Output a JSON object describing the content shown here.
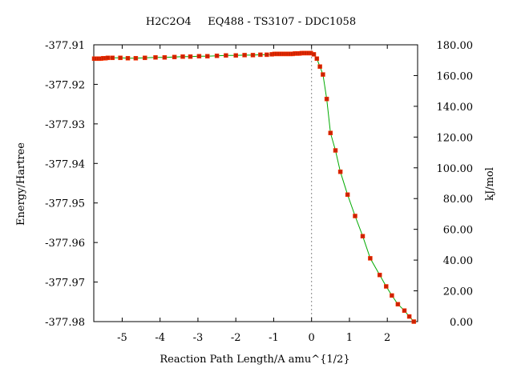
{
  "chart_data": {
    "type": "line",
    "title": "H2C2O4     EQ488 - TS3107 - DDC1058",
    "xlabel": "Reaction Path Length/A amu^{1/2}",
    "ylabel": "Energy/Hartree",
    "y2label": "kJ/mol",
    "xlim": [
      -5.75,
      2.8
    ],
    "ylim": [
      -377.98,
      -377.91
    ],
    "y2lim": [
      0,
      180
    ],
    "x_ticks": [
      -5,
      -4,
      -3,
      -2,
      -1,
      0,
      1,
      2
    ],
    "y_ticks": [
      -377.98,
      -377.97,
      -377.96,
      -377.95,
      -377.94,
      -377.93,
      -377.92,
      -377.91
    ],
    "y2_ticks": [
      0,
      20,
      40,
      60,
      80,
      100,
      120,
      140,
      160,
      180
    ],
    "x_tick_labels": [
      "-5",
      "-4",
      "-3",
      "-2",
      "-1",
      "0",
      "1",
      "2"
    ],
    "y_tick_labels": [
      "-377.98",
      "-377.97",
      "-377.96",
      "-377.95",
      "-377.94",
      "-377.93",
      "-377.92",
      "-377.91"
    ],
    "y2_tick_labels": [
      "0.00",
      "20.00",
      "40.00",
      "60.00",
      "80.00",
      "100.00",
      "120.00",
      "140.00",
      "160.00",
      "180.00"
    ],
    "ts_marker_x": 0,
    "line_color": "#00aa00",
    "marker_color": "#cc2200",
    "series": [
      {
        "x": [
          -5.74,
          -5.68,
          -5.62,
          -5.56,
          -5.5,
          -5.44,
          -5.38,
          -5.26,
          -5.05,
          -4.85,
          -4.64,
          -4.4,
          -4.12,
          -3.88,
          -3.62,
          -3.4,
          -3.2,
          -2.97,
          -2.75,
          -2.5,
          -2.26,
          -2.0,
          -1.77,
          -1.55,
          -1.35,
          -1.18,
          -1.05,
          -0.98,
          -0.92,
          -0.86,
          -0.8,
          -0.74,
          -0.68,
          -0.62,
          -0.56,
          -0.5,
          -0.44,
          -0.38,
          -0.32,
          -0.26,
          -0.2,
          -0.14,
          -0.08,
          -0.02,
          0.06,
          0.14,
          0.22,
          0.3,
          0.4,
          0.5,
          0.63,
          0.76,
          0.95,
          1.15,
          1.35,
          1.55,
          1.8,
          1.97,
          2.12,
          2.28,
          2.45,
          2.58,
          2.7
        ],
        "y": [
          -377.9135,
          -377.9135,
          -377.9135,
          -377.9135,
          -377.9134,
          -377.9134,
          -377.9133,
          -377.9133,
          -377.9133,
          -377.9134,
          -377.9134,
          -377.9133,
          -377.9132,
          -377.9132,
          -377.9131,
          -377.913,
          -377.913,
          -377.9129,
          -377.9129,
          -377.9128,
          -377.9127,
          -377.9127,
          -377.9126,
          -377.9126,
          -377.9125,
          -377.9125,
          -377.9124,
          -377.9123,
          -377.9123,
          -377.9123,
          -377.9123,
          -377.9123,
          -377.9123,
          -377.9123,
          -377.9123,
          -377.9123,
          -377.9122,
          -377.9122,
          -377.9122,
          -377.9121,
          -377.9121,
          -377.9121,
          -377.9121,
          -377.9121,
          -377.9124,
          -377.9135,
          -377.9155,
          -377.9175,
          -377.9237,
          -377.9323,
          -377.9367,
          -377.9421,
          -377.9479,
          -377.9533,
          -377.9584,
          -377.964,
          -377.9682,
          -377.9711,
          -377.9734,
          -377.9756,
          -377.9772,
          -377.9787,
          -377.98
        ]
      }
    ]
  }
}
